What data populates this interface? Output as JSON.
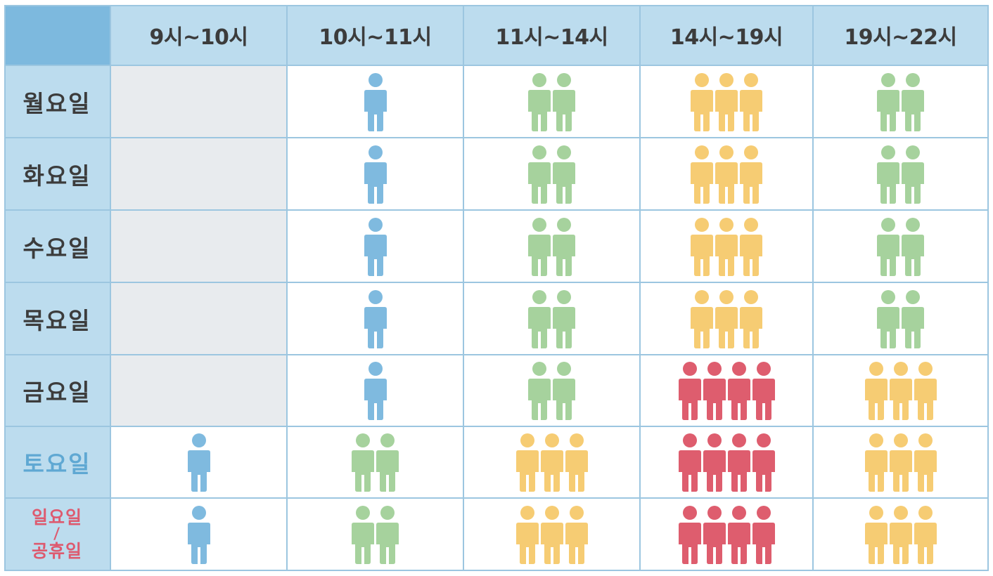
{
  "chart_data": {
    "type": "table",
    "title": "",
    "columns": [
      "9시~10시",
      "10시~11시",
      "11시~14시",
      "14시~19시",
      "19시~22시"
    ],
    "rows": [
      {
        "day": "월요일",
        "style": "weekday",
        "values": [
          null,
          1,
          2,
          3,
          2
        ]
      },
      {
        "day": "화요일",
        "style": "weekday",
        "values": [
          null,
          1,
          2,
          3,
          2
        ]
      },
      {
        "day": "수요일",
        "style": "weekday",
        "values": [
          null,
          1,
          2,
          3,
          2
        ]
      },
      {
        "day": "목요일",
        "style": "weekday",
        "values": [
          null,
          1,
          2,
          3,
          2
        ]
      },
      {
        "day": "금요일",
        "style": "weekday",
        "values": [
          null,
          1,
          2,
          4,
          3
        ]
      },
      {
        "day": "토요일",
        "style": "saturday",
        "values": [
          1,
          2,
          3,
          4,
          3
        ]
      },
      {
        "day": "일요일",
        "day_line2": "공휴일",
        "separator": "/",
        "style": "holiday",
        "values": [
          1,
          2,
          3,
          4,
          3
        ]
      }
    ],
    "level_colors": {
      "1": "#7fbadf",
      "2": "#a6d29d",
      "3": "#f6cc73",
      "4": "#de5d6e"
    },
    "closed_color": "#e8ebee"
  }
}
